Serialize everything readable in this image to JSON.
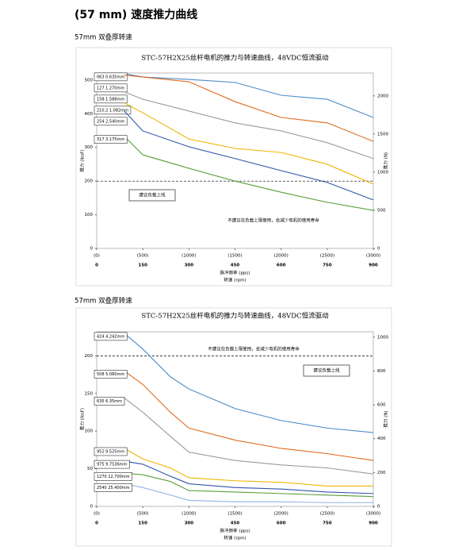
{
  "title": "(57 mm) 速度推力曲线",
  "subtitles": [
    "57mm 双叠厚转速",
    "57mm 双叠厚转速"
  ],
  "chart_data": [
    {
      "type": "line",
      "title": "STC-57H2X25丝杆电机的推力与转速曲线，48VDC恒流驱动",
      "x_label": "脉冲频率 (pps)",
      "x2_label": "转速 (rpm)",
      "y_label": "推力 (lbsF)",
      "y2_label": "推力 (N)",
      "xlim": [
        0,
        3000
      ],
      "xticks": [
        {
          "value": 0,
          "label": "(0)"
        },
        {
          "value": 500,
          "label": "(500)"
        },
        {
          "value": 1000,
          "label": "(1000)"
        },
        {
          "value": 1500,
          "label": "(1500)"
        },
        {
          "value": 2000,
          "label": "(2000)"
        },
        {
          "value": 2500,
          "label": "(2500)"
        },
        {
          "value": 3000,
          "label": "(3000)"
        }
      ],
      "x2lim": [
        0,
        900
      ],
      "x2ticks": [
        0,
        150,
        300,
        450,
        600,
        750,
        900
      ],
      "ylim": [
        0,
        521
      ],
      "yticks": [
        0,
        100,
        200,
        300,
        400,
        500
      ],
      "y2lim": [
        0,
        2300
      ],
      "y2ticks": [
        0,
        500,
        1000,
        1500,
        2000
      ],
      "limit_line": 200,
      "limit_label": "建议负载上线",
      "note": "不建议在负载上限使用，会减少电机的使用寿命",
      "x": [
        300,
        500,
        1000,
        1500,
        2000,
        2500,
        3000
      ],
      "series": [
        {
          "name": "063 0.635mm",
          "color": "#4a8cc7",
          "values": [
            519,
            509,
            502,
            493,
            455,
            443,
            389
          ]
        },
        {
          "name": "127 1.270mm",
          "color": "#e06b1f",
          "values": [
            515,
            509,
            495,
            436,
            389,
            373,
            318
          ]
        },
        {
          "name": "158 1.588mm",
          "color": "#9a9a9a",
          "values": [
            465,
            443,
            408,
            373,
            349,
            314,
            267
          ]
        },
        {
          "name": "210.2 1.082mm",
          "color": "#f0b400",
          "values": [
            432,
            403,
            325,
            297,
            285,
            250,
            191
          ]
        },
        {
          "name": "254 2.540mm",
          "color": "#2e55a8",
          "values": [
            408,
            349,
            302,
            267,
            231,
            196,
            144
          ]
        },
        {
          "name": "317 3.175mm",
          "color": "#5a9e3a",
          "values": [
            333,
            278,
            238,
            200,
            167,
            137,
            113
          ]
        }
      ]
    },
    {
      "type": "line",
      "title": "STC-57H2X25丝杆电机的推力与转速曲线，48VDC恒流驱动",
      "x_label": "脉冲频率 (pps)",
      "x2_label": "转速 (rpm)",
      "y_label": "推力 (lbsF)",
      "y2_label": "推力 (N)",
      "xlim": [
        0,
        3000
      ],
      "xticks": [
        {
          "value": 0,
          "label": "(0)"
        },
        {
          "value": 500,
          "label": "(500)"
        },
        {
          "value": 1000,
          "label": "(1000)"
        },
        {
          "value": 1500,
          "label": "(1500)"
        },
        {
          "value": 2000,
          "label": "(2000)"
        },
        {
          "value": 2500,
          "label": "(2500)"
        },
        {
          "value": 3000,
          "label": "(3000)"
        }
      ],
      "x2lim": [
        0,
        900
      ],
      "x2ticks": [
        0,
        150,
        300,
        450,
        600,
        750,
        900
      ],
      "ylim": [
        0,
        232
      ],
      "yticks": [
        0,
        50,
        100,
        150,
        200
      ],
      "y2lim": [
        0,
        1032
      ],
      "y2ticks": [
        0,
        200,
        400,
        600,
        800,
        1000
      ],
      "limit_line": 200,
      "limit_label": "建议负载上线",
      "note": "不建议在负载上限使用，会减少电机的使用寿命",
      "x": [
        300,
        500,
        800,
        1000,
        1500,
        2000,
        2500,
        3000
      ],
      "series": [
        {
          "name": "424 4.242mm",
          "color": "#4a8cc7",
          "values": [
            230,
            209,
            172,
            156,
            130,
            114,
            104,
            98
          ]
        },
        {
          "name": "508 5.080mm",
          "color": "#e06b1f",
          "values": [
            180,
            162,
            125,
            104,
            88,
            77,
            70,
            61
          ]
        },
        {
          "name": "635 6.35mm",
          "color": "#9a9a9a",
          "values": [
            144,
            125,
            93,
            72,
            61,
            55,
            51,
            43
          ]
        },
        {
          "name": "952 9.525mm",
          "color": "#f0b400",
          "values": [
            77,
            63,
            51,
            38,
            34,
            32,
            27,
            27
          ]
        },
        {
          "name": "975 9.7536mm",
          "color": "#2e55a8",
          "values": [
            60,
            56,
            40,
            30,
            25,
            23,
            19,
            17
          ]
        },
        {
          "name": "1270 12.700mm",
          "color": "#5a9e3a",
          "values": [
            44,
            42,
            33,
            21,
            19,
            17,
            15,
            13
          ]
        },
        {
          "name": "2540 25.400mm",
          "color": "#8fb4e3",
          "values": [
            30,
            25,
            15,
            8,
            6,
            6,
            5,
            5
          ]
        }
      ]
    }
  ]
}
